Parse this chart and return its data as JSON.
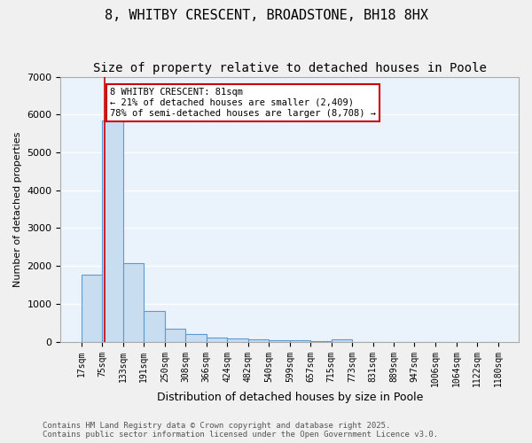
{
  "title": "8, WHITBY CRESCENT, BROADSTONE, BH18 8HX",
  "subtitle": "Size of property relative to detached houses in Poole",
  "xlabel": "Distribution of detached houses by size in Poole",
  "ylabel": "Number of detached properties",
  "bins": [
    17,
    75,
    133,
    191,
    250,
    308,
    366,
    424,
    482,
    540,
    599,
    657,
    715,
    773,
    831,
    889,
    947,
    1006,
    1064,
    1122,
    1180
  ],
  "bin_labels": [
    "17sqm",
    "75sqm",
    "133sqm",
    "191sqm",
    "250sqm",
    "308sqm",
    "366sqm",
    "424sqm",
    "482sqm",
    "540sqm",
    "599sqm",
    "657sqm",
    "715sqm",
    "773sqm",
    "831sqm",
    "889sqm",
    "947sqm",
    "1006sqm",
    "1064sqm",
    "1122sqm",
    "1180sqm"
  ],
  "values": [
    1780,
    5850,
    2080,
    820,
    340,
    200,
    110,
    75,
    60,
    45,
    30,
    20,
    60,
    0,
    0,
    0,
    0,
    0,
    0,
    0
  ],
  "bar_color": "#c9ddf0",
  "bar_edge_color": "#5b9bd5",
  "property_line_x": 81,
  "property_line_color": "#cc0000",
  "ylim": [
    0,
    7000
  ],
  "yticks": [
    0,
    1000,
    2000,
    3000,
    4000,
    5000,
    6000,
    7000
  ],
  "annotation_text": "8 WHITBY CRESCENT: 81sqm\n← 21% of detached houses are smaller (2,409)\n78% of semi-detached houses are larger (8,708) →",
  "annotation_box_color": "#cc0000",
  "bg_color": "#eaf2fb",
  "grid_color": "#ffffff",
  "footer_line1": "Contains HM Land Registry data © Crown copyright and database right 2025.",
  "footer_line2": "Contains public sector information licensed under the Open Government Licence v3.0.",
  "title_fontsize": 11,
  "subtitle_fontsize": 10
}
